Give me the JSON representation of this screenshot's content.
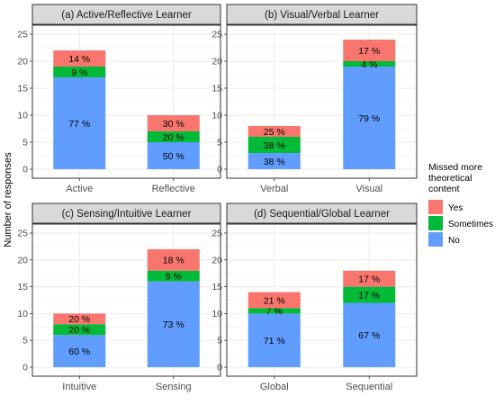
{
  "y_axis_label": "Number of responses",
  "legend": {
    "title_lines": [
      "Missed more",
      "theoretical",
      "content"
    ],
    "items": [
      {
        "key": "yes",
        "label": "Yes",
        "color": "#F8766D"
      },
      {
        "key": "sometimes",
        "label": "Sometimes",
        "color": "#00BA38"
      },
      {
        "key": "no",
        "label": "No",
        "color": "#619CFF"
      }
    ]
  },
  "chart_data": [
    {
      "type": "bar",
      "stacked": true,
      "title": "(a) Active/Reflective Learner",
      "categories": [
        "Active",
        "Reflective"
      ],
      "series": [
        {
          "name": "No",
          "values": [
            17,
            5
          ],
          "labels": [
            "77 %",
            "50 %"
          ]
        },
        {
          "name": "Sometimes",
          "values": [
            2,
            2
          ],
          "labels": [
            "9 %",
            "20 %"
          ]
        },
        {
          "name": "Yes",
          "values": [
            3,
            3
          ],
          "labels": [
            "14 %",
            "30 %"
          ]
        }
      ],
      "ylabel": "Number of responses",
      "ylim": [
        0,
        25
      ],
      "yticks": [
        0,
        5,
        10,
        15,
        20,
        25
      ],
      "grid": true
    },
    {
      "type": "bar",
      "stacked": true,
      "title": "(b) Visual/Verbal Learner",
      "categories": [
        "Verbal",
        "Visual"
      ],
      "series": [
        {
          "name": "No",
          "values": [
            3,
            19
          ],
          "labels": [
            "38 %",
            "79 %"
          ]
        },
        {
          "name": "Sometimes",
          "values": [
            3,
            1
          ],
          "labels": [
            "38 %",
            "4 %"
          ]
        },
        {
          "name": "Yes",
          "values": [
            2,
            4
          ],
          "labels": [
            "25 %",
            "17 %"
          ]
        }
      ],
      "ylabel": "Number of responses",
      "ylim": [
        0,
        25
      ],
      "yticks": [
        0,
        5,
        10,
        15,
        20,
        25
      ],
      "grid": true
    },
    {
      "type": "bar",
      "stacked": true,
      "title": "(c) Sensing/Intuitive Learner",
      "categories": [
        "Intuitive",
        "Sensing"
      ],
      "series": [
        {
          "name": "No",
          "values": [
            6,
            16
          ],
          "labels": [
            "60 %",
            "73 %"
          ]
        },
        {
          "name": "Sometimes",
          "values": [
            2,
            2
          ],
          "labels": [
            "20 %",
            "9 %"
          ]
        },
        {
          "name": "Yes",
          "values": [
            2,
            4
          ],
          "labels": [
            "20 %",
            "18 %"
          ]
        }
      ],
      "ylabel": "Number of responses",
      "ylim": [
        0,
        25
      ],
      "yticks": [
        0,
        5,
        10,
        15,
        20,
        25
      ],
      "grid": true
    },
    {
      "type": "bar",
      "stacked": true,
      "title": "(d) Sequential/Global Learner",
      "categories": [
        "Global",
        "Sequential"
      ],
      "series": [
        {
          "name": "No",
          "values": [
            10,
            12
          ],
          "labels": [
            "71 %",
            "67 %"
          ]
        },
        {
          "name": "Sometimes",
          "values": [
            1,
            3
          ],
          "labels": [
            "7 %",
            "17 %"
          ]
        },
        {
          "name": "Yes",
          "values": [
            3,
            3
          ],
          "labels": [
            "21 %",
            "17 %"
          ]
        }
      ],
      "ylabel": "Number of responses",
      "ylim": [
        0,
        25
      ],
      "yticks": [
        0,
        5,
        10,
        15,
        20,
        25
      ],
      "grid": true
    }
  ]
}
